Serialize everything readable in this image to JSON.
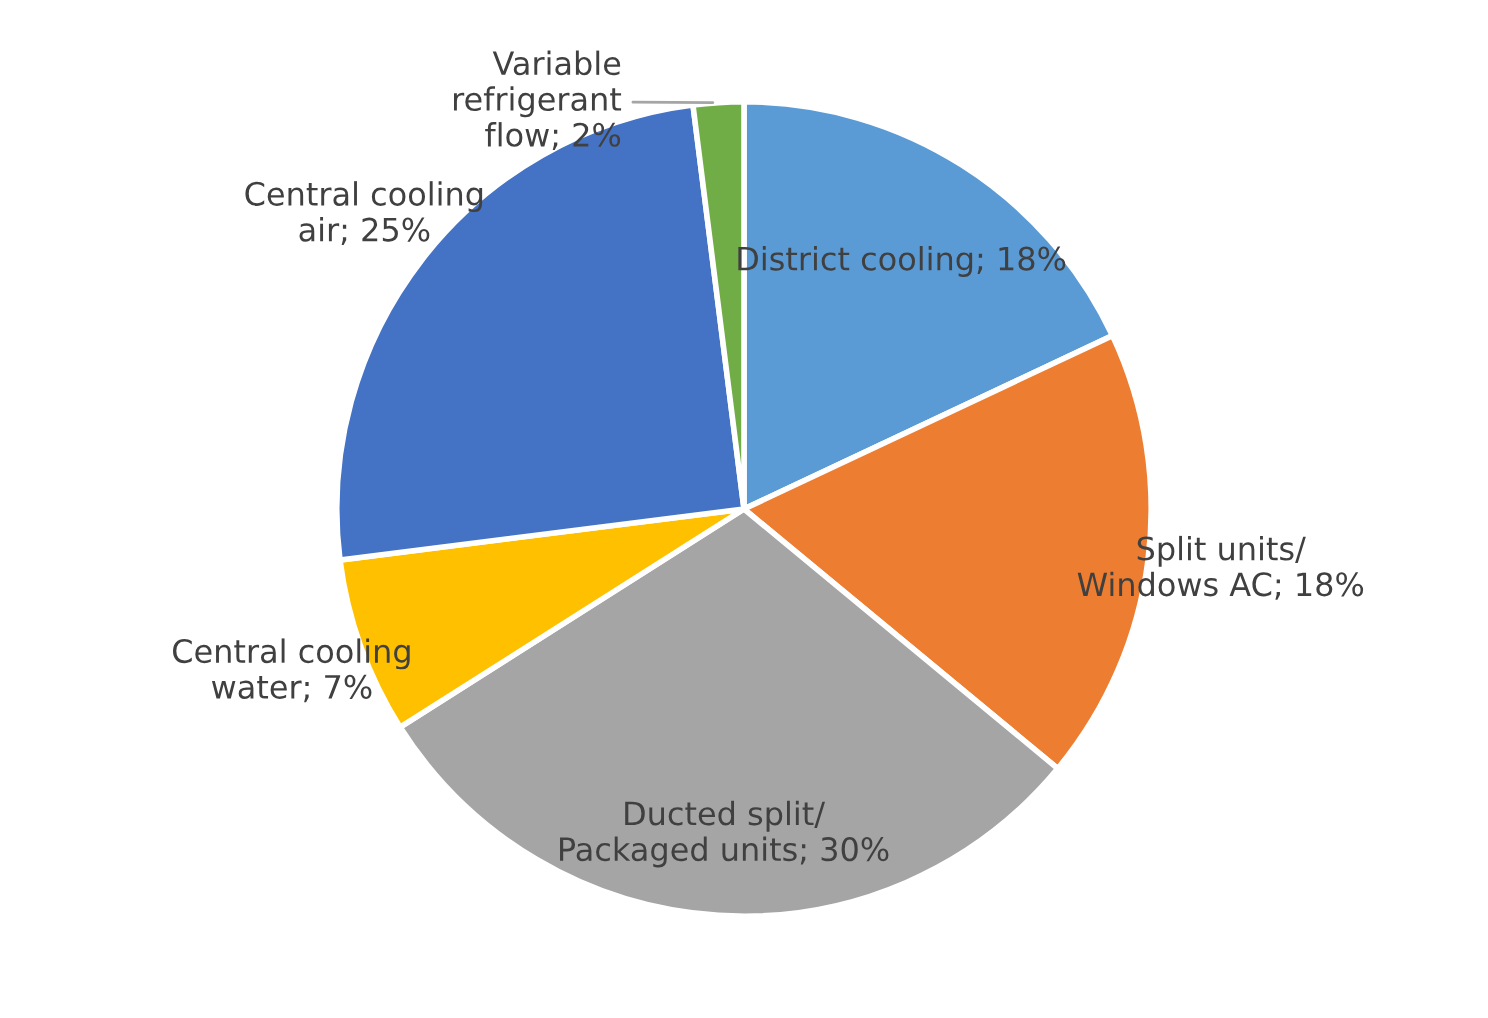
{
  "chart_data": {
    "type": "pie",
    "categories": [
      "District cooling",
      "Split units/\nWindows AC",
      "Ducted split/\nPackaged units",
      "Central cooling\nwater",
      "Central cooling\nair",
      "Variable\nrefrigerant\nflow"
    ],
    "values": [
      18,
      18,
      30,
      7,
      25,
      2
    ],
    "value_labels": [
      "18%",
      "18%",
      "30%",
      "7%",
      "25%",
      "2%"
    ],
    "colors": [
      "#5b9bd5",
      "#ed7d31",
      "#a5a5a5",
      "#ffc000",
      "#4472c4",
      "#70ad47"
    ],
    "legend": false
  }
}
